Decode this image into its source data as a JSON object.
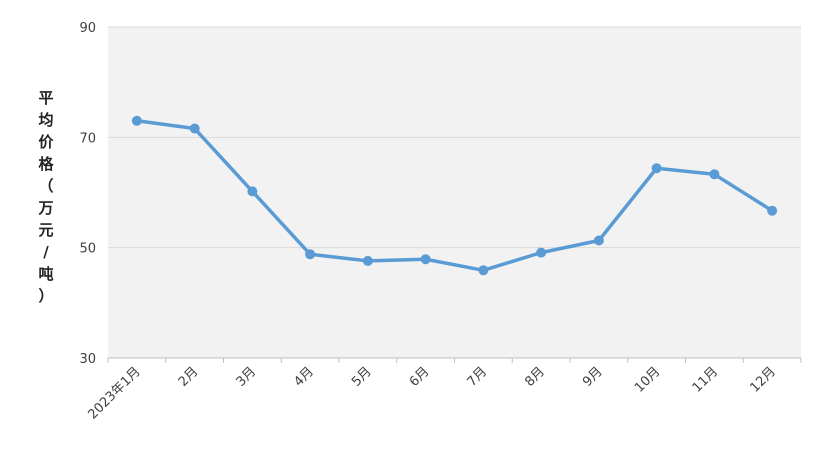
{
  "chart_data": {
    "type": "line",
    "title": "",
    "xlabel": "",
    "ylabel": "平均价格（万元/吨）",
    "categories": [
      "2023年1月",
      "2月",
      "3月",
      "4月",
      "5月",
      "6月",
      "7月",
      "8月",
      "9月",
      "10月",
      "11月",
      "12月"
    ],
    "series": [
      {
        "values": [
          73.0,
          71.6,
          60.2,
          48.8,
          47.6,
          47.9,
          45.9,
          49.1,
          51.3,
          64.4,
          63.3,
          56.7
        ]
      }
    ],
    "ylim": [
      30,
      90
    ],
    "yticks": [
      30,
      50,
      70,
      90
    ],
    "grid": true,
    "legend": "none",
    "colors": {
      "line": "#5b9bd5",
      "plot_bg": "#f2f2f2",
      "grid": "#d9d9d9",
      "axis": "#bfbfbf"
    }
  }
}
